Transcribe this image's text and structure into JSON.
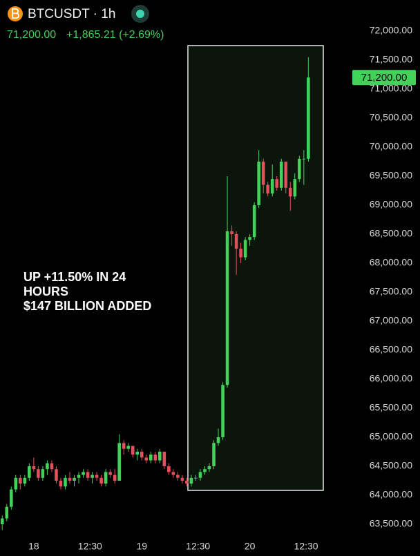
{
  "chart_data": {
    "type": "candlestick",
    "title": "BTCUSDT · 1h",
    "price_text": "71,200.00",
    "change_text": "+1,865.21 (+2.69%)",
    "annotation": [
      "UP +11.50% IN 24",
      "HOURS",
      "$147 BILLION ADDED"
    ],
    "last_price_tag": {
      "value": 71200,
      "label": "71,200.00"
    },
    "up_color": "#43d15a",
    "down_color": "#e2505c",
    "xlim": [
      -7.5,
      70
    ],
    "ylim": [
      63500,
      72000
    ],
    "xticks": [
      {
        "value": 0,
        "label": "18"
      },
      {
        "value": 12.5,
        "label": "12:30"
      },
      {
        "value": 24,
        "label": "19"
      },
      {
        "value": 36.5,
        "label": "12:30"
      },
      {
        "value": 48,
        "label": "20"
      },
      {
        "value": 60.5,
        "label": "12:30"
      }
    ],
    "yticks": [
      {
        "value": 63500,
        "label": "63,500.00"
      },
      {
        "value": 64000,
        "label": "64,000.00"
      },
      {
        "value": 64500,
        "label": "64,500.00"
      },
      {
        "value": 65000,
        "label": "65,000.00"
      },
      {
        "value": 65500,
        "label": "65,500.00"
      },
      {
        "value": 66000,
        "label": "66,000.00"
      },
      {
        "value": 66500,
        "label": "66,500.00"
      },
      {
        "value": 67000,
        "label": "67,000.00"
      },
      {
        "value": 67500,
        "label": "67,500.00"
      },
      {
        "value": 68000,
        "label": "68,000.00"
      },
      {
        "value": 68500,
        "label": "68,500.00"
      },
      {
        "value": 69000,
        "label": "69,000.00"
      },
      {
        "value": 69500,
        "label": "69,500.00"
      },
      {
        "value": 70000,
        "label": "70,000.00"
      },
      {
        "value": 70500,
        "label": "70,500.00"
      },
      {
        "value": 71000,
        "label": "71,000.00"
      },
      {
        "value": 71500,
        "label": "71,500.00"
      },
      {
        "value": 72000,
        "label": "72,000.00"
      }
    ],
    "x": [
      -7,
      -6,
      -5,
      -4,
      -3,
      -2,
      -1,
      0,
      1,
      2,
      3,
      4,
      5,
      6,
      7,
      8,
      9,
      10,
      11,
      12,
      13,
      14,
      15,
      16,
      17,
      18,
      19,
      20,
      21,
      22,
      23,
      24,
      25,
      26,
      27,
      28,
      29,
      30,
      31,
      32,
      33,
      34,
      35,
      36,
      37,
      38,
      39,
      40,
      41,
      42,
      43,
      44,
      45,
      46,
      47,
      48,
      49,
      50,
      51,
      52,
      53,
      54,
      55,
      56,
      57,
      58,
      59,
      60,
      61
    ],
    "open": [
      63500,
      63600,
      63800,
      64100,
      64300,
      64200,
      64300,
      64500,
      64450,
      64300,
      64450,
      64550,
      64450,
      64250,
      64150,
      64300,
      64250,
      64300,
      64350,
      64400,
      64300,
      64350,
      64300,
      64200,
      64400,
      64350,
      64250,
      64900,
      64800,
      64850,
      64700,
      64750,
      64650,
      64600,
      64700,
      64600,
      64750,
      64500,
      64400,
      64350,
      64300,
      64250,
      64200,
      64300,
      64300,
      64400,
      64450,
      64500,
      64900,
      65000,
      65900,
      68550,
      68500,
      68250,
      68100,
      68400,
      68450,
      69000,
      69750,
      69350,
      69200,
      69450,
      69300,
      69750,
      69300,
      69150,
      69450,
      69800,
      69800
    ],
    "high": [
      63650,
      63850,
      64150,
      64350,
      64350,
      64350,
      64550,
      64650,
      64500,
      64500,
      64600,
      64600,
      64500,
      64300,
      64350,
      64400,
      64350,
      64400,
      64450,
      64450,
      64400,
      64400,
      64350,
      64450,
      64450,
      64450,
      65050,
      64950,
      64900,
      64850,
      64800,
      64800,
      64700,
      64750,
      64750,
      64800,
      64750,
      64550,
      64450,
      64400,
      64350,
      64300,
      64350,
      64350,
      64450,
      64500,
      64550,
      64950,
      65150,
      65950,
      69500,
      68650,
      68550,
      68350,
      68450,
      68500,
      69050,
      69950,
      69800,
      69400,
      69700,
      69500,
      69800,
      69750,
      69400,
      69550,
      69850,
      69950,
      71550
    ],
    "low": [
      63400,
      63550,
      63750,
      64050,
      64100,
      64150,
      64250,
      64400,
      64250,
      64250,
      64350,
      64400,
      64200,
      64100,
      64100,
      64200,
      64150,
      64200,
      64300,
      64250,
      64200,
      64250,
      64150,
      64150,
      64300,
      64200,
      64250,
      64700,
      64750,
      64650,
      64600,
      64600,
      64550,
      64550,
      64550,
      64550,
      64450,
      64350,
      64300,
      64250,
      64200,
      64150,
      64150,
      64250,
      64250,
      64350,
      64400,
      64450,
      64850,
      64950,
      65850,
      68300,
      67800,
      68000,
      68050,
      68300,
      68400,
      68950,
      69200,
      69150,
      69150,
      69250,
      69250,
      69200,
      68900,
      69100,
      69400,
      69350,
      69750
    ],
    "close": [
      63600,
      63800,
      64100,
      64300,
      64200,
      64300,
      64500,
      64450,
      64300,
      64450,
      64550,
      64450,
      64250,
      64150,
      64300,
      64250,
      64300,
      64350,
      64400,
      64300,
      64350,
      64300,
      64200,
      64400,
      64350,
      64250,
      64900,
      64800,
      64850,
      64700,
      64750,
      64650,
      64600,
      64700,
      64600,
      64750,
      64500,
      64400,
      64350,
      64300,
      64250,
      64200,
      64300,
      64300,
      64400,
      64450,
      64500,
      64900,
      65000,
      65900,
      68550,
      68500,
      68250,
      68100,
      68400,
      68450,
      69000,
      69750,
      69350,
      69200,
      69450,
      69300,
      69750,
      69300,
      69150,
      69450,
      69800,
      69800,
      71200
    ]
  }
}
